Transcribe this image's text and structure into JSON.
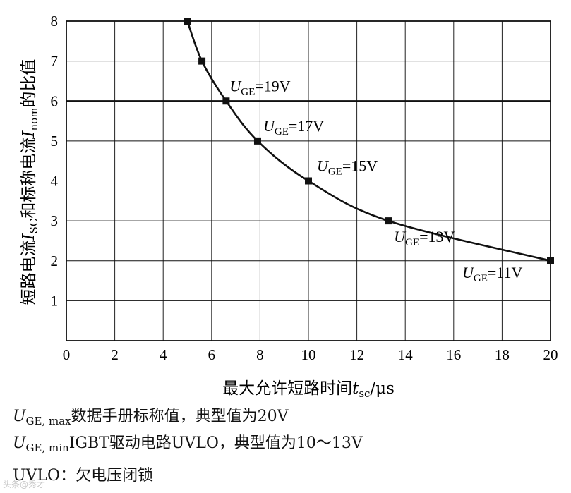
{
  "chart_data": {
    "type": "line",
    "title": "",
    "ylabel": {
      "prefix": "短路电流",
      "var1": "I",
      "sub1": "SC",
      "mid": "和标称电流",
      "var2": "I",
      "sub2": "nom",
      "suffix": "的比值"
    },
    "xlabel": {
      "prefix": "最大允许短路时间",
      "var": "t",
      "sub": "sc",
      "suffix": "/μs"
    },
    "xlim": [
      0,
      20
    ],
    "ylim": [
      0,
      8
    ],
    "xticks": [
      0,
      2,
      4,
      6,
      8,
      10,
      12,
      14,
      16,
      18,
      20
    ],
    "yticks": [
      1,
      2,
      3,
      4,
      5,
      6,
      7,
      8
    ],
    "grid": true,
    "grid_bold_y": 6,
    "series": [
      {
        "points": [
          {
            "x": 5.0,
            "y": 8
          },
          {
            "x": 5.6,
            "y": 7
          },
          {
            "x": 6.6,
            "y": 6
          },
          {
            "x": 7.9,
            "y": 5
          },
          {
            "x": 10.0,
            "y": 4
          },
          {
            "x": 13.3,
            "y": 3
          },
          {
            "x": 20.0,
            "y": 2
          }
        ]
      }
    ],
    "annotations": [
      {
        "var": "U",
        "sub": "GE",
        "text": "=19V",
        "x": 6.6,
        "y": 6
      },
      {
        "var": "U",
        "sub": "GE",
        "text": "=17V",
        "x": 7.9,
        "y": 5
      },
      {
        "var": "U",
        "sub": "GE",
        "text": "=15V",
        "x": 10.0,
        "y": 4
      },
      {
        "var": "U",
        "sub": "GE",
        "text": "=13V",
        "x": 13.3,
        "y": 3
      },
      {
        "var": "U",
        "sub": "GE",
        "text": "=11V",
        "x": 20.0,
        "y": 2
      }
    ]
  },
  "notes": {
    "line1": {
      "var": "U",
      "sub": "GE, max",
      "text": "数据手册标称值，典型值为20V"
    },
    "line2": {
      "var": "U",
      "sub": "GE, min",
      "text": "IGBT驱动电路UVLO，典型值为10～13V"
    },
    "line3": "UVLO：欠电压闭锁"
  },
  "watermark": "头条@秀才"
}
